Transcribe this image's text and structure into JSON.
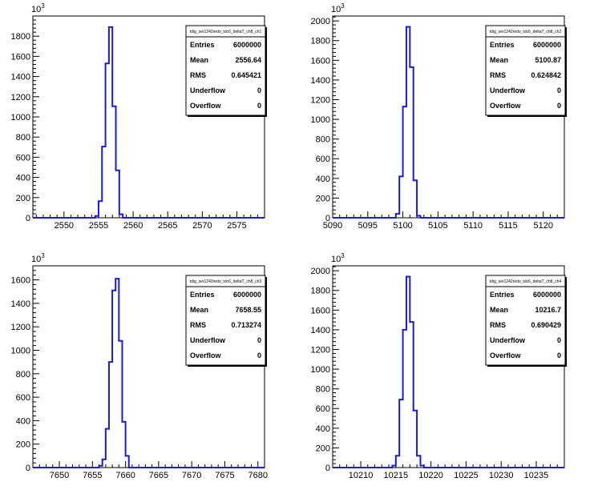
{
  "chart_data": [
    {
      "type": "histogram",
      "title": "tdig_ser1242redo_tdc6_deltaT_ch8_ch1",
      "y_multiplier": "10^3",
      "xlim": [
        2545.5,
        2579
      ],
      "ylim": [
        0,
        2000
      ],
      "x_ticks": [
        2550,
        2555,
        2560,
        2565,
        2570,
        2575
      ],
      "y_ticks": [
        0,
        200,
        400,
        600,
        800,
        1000,
        1200,
        1400,
        1600,
        1800
      ],
      "bin_width": 0.5,
      "bins_x": [
        2554.5,
        2555.0,
        2555.5,
        2556.0,
        2556.5,
        2557.0,
        2557.5,
        2558.0
      ],
      "bins_y": [
        18,
        165,
        705,
        1530,
        1890,
        1105,
        470,
        35
      ],
      "stats": [
        {
          "label": "Entries",
          "value": "6000000"
        },
        {
          "label": "Mean",
          "value": "2556.64"
        },
        {
          "label": "RMS",
          "value": "0.645421"
        },
        {
          "label": "Underflow",
          "value": "0"
        },
        {
          "label": "Overflow",
          "value": "0"
        }
      ]
    },
    {
      "type": "histogram",
      "title": "tdig_ser1242redo_tdc6_deltaT_ch8_ch2",
      "y_multiplier": "10^3",
      "xlim": [
        5090,
        5123
      ],
      "ylim": [
        0,
        2050
      ],
      "x_ticks": [
        5090,
        5095,
        5100,
        5105,
        5110,
        5115,
        5120
      ],
      "y_ticks": [
        0,
        200,
        400,
        600,
        800,
        1000,
        1200,
        1400,
        1600,
        1800,
        2000
      ],
      "bin_width": 0.5,
      "bins_x": [
        5099.0,
        5099.5,
        5100.0,
        5100.5,
        5101.0,
        5101.5,
        5102.0
      ],
      "bins_y": [
        40,
        420,
        1130,
        1940,
        1530,
        380,
        20
      ],
      "stats": [
        {
          "label": "Entries",
          "value": "6000000"
        },
        {
          "label": "Mean",
          "value": "5100.87"
        },
        {
          "label": "RMS",
          "value": "0.624842"
        },
        {
          "label": "Underflow",
          "value": "0"
        },
        {
          "label": "Overflow",
          "value": "0"
        }
      ]
    },
    {
      "type": "histogram",
      "title": "tdig_ser1242redo_tdc6_deltaT_ch8_ch3",
      "y_multiplier": "10^3",
      "xlim": [
        7646,
        7681
      ],
      "ylim": [
        0,
        1720
      ],
      "x_ticks": [
        7650,
        7655,
        7660,
        7665,
        7670,
        7675,
        7680
      ],
      "y_ticks": [
        0,
        200,
        400,
        600,
        800,
        1000,
        1200,
        1400,
        1600
      ],
      "bin_width": 0.5,
      "bins_x": [
        7656.0,
        7656.5,
        7657.0,
        7657.5,
        7658.0,
        7658.5,
        7659.0,
        7659.5,
        7660.0
      ],
      "bins_y": [
        15,
        70,
        330,
        900,
        1510,
        1610,
        1080,
        390,
        100
      ],
      "stats": [
        {
          "label": "Entries",
          "value": "6000000"
        },
        {
          "label": "Mean",
          "value": "7658.55"
        },
        {
          "label": "RMS",
          "value": "0.713274"
        },
        {
          "label": "Underflow",
          "value": "0"
        },
        {
          "label": "Overflow",
          "value": "0"
        }
      ]
    },
    {
      "type": "histogram",
      "title": "tdig_ser1242redo_tdc6_deltaT_ch8_ch4",
      "y_multiplier": "10^3",
      "xlim": [
        10206,
        10239
      ],
      "ylim": [
        0,
        2050
      ],
      "x_ticks": [
        10210,
        10215,
        10220,
        10225,
        10230,
        10235
      ],
      "y_ticks": [
        0,
        200,
        400,
        600,
        800,
        1000,
        1200,
        1400,
        1600,
        1800,
        2000
      ],
      "bin_width": 0.5,
      "bins_x": [
        10214.5,
        10215.0,
        10215.5,
        10216.0,
        10216.5,
        10217.0,
        10217.5,
        10218.0,
        10218.5
      ],
      "bins_y": [
        20,
        120,
        690,
        1400,
        1940,
        1480,
        580,
        120,
        20
      ],
      "stats": [
        {
          "label": "Entries",
          "value": "6000000"
        },
        {
          "label": "Mean",
          "value": "10216.7"
        },
        {
          "label": "RMS",
          "value": "0.690429"
        },
        {
          "label": "Underflow",
          "value": "0"
        },
        {
          "label": "Overflow",
          "value": "0"
        }
      ]
    }
  ]
}
